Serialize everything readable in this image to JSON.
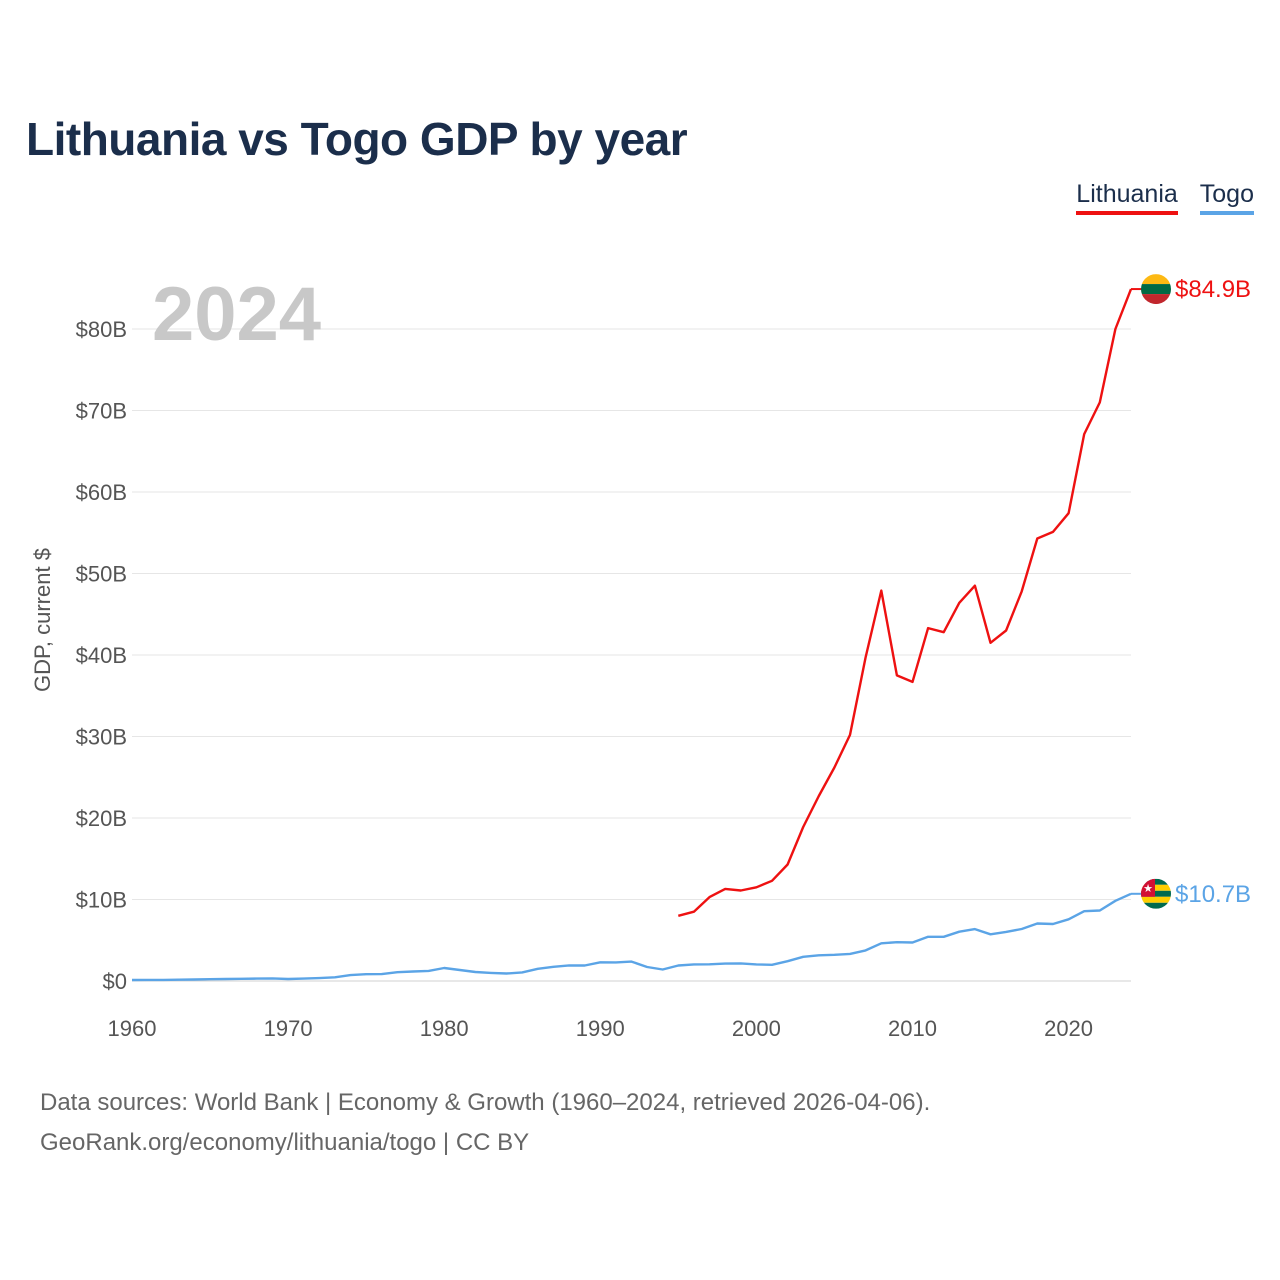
{
  "title": "Lithuania vs Togo GDP by year",
  "legend": {
    "lithuania": "Lithuania",
    "togo": "Togo"
  },
  "source_line1": "Data sources: World Bank | Economy & Growth (1960–2024, retrieved 2026-04-06).",
  "source_line2": "GeoRank.org/economy/lithuania/togo | CC BY",
  "chart_data": {
    "type": "line",
    "title": "Lithuania vs Togo GDP by year",
    "ylabel": "GDP, current $",
    "xlabel": "",
    "year_label": "2024",
    "xlim": [
      1960,
      2024
    ],
    "ylim": [
      0,
      80
    ],
    "y_unit": "billion USD",
    "x_ticks": [
      1960,
      1970,
      1980,
      1990,
      2000,
      2010,
      2020
    ],
    "y_ticks": [
      {
        "value": 0,
        "label": "$0"
      },
      {
        "value": 10,
        "label": "$10B"
      },
      {
        "value": 20,
        "label": "$20B"
      },
      {
        "value": 30,
        "label": "$30B"
      },
      {
        "value": 40,
        "label": "$40B"
      },
      {
        "value": 50,
        "label": "$50B"
      },
      {
        "value": 60,
        "label": "$60B"
      },
      {
        "value": 70,
        "label": "$70B"
      },
      {
        "value": 80,
        "label": "$80B"
      }
    ],
    "grid": true,
    "series": [
      {
        "name": "Lithuania",
        "color": "#ee1111",
        "end_label": "$84.9B",
        "flag": "lithuania-flag",
        "x": [
          1995,
          1996,
          1997,
          1998,
          1999,
          2000,
          2001,
          2002,
          2003,
          2004,
          2005,
          2006,
          2007,
          2008,
          2009,
          2010,
          2011,
          2012,
          2013,
          2014,
          2015,
          2016,
          2017,
          2018,
          2019,
          2020,
          2021,
          2022,
          2023,
          2024
        ],
        "values": [
          8.0,
          8.5,
          10.3,
          11.3,
          11.1,
          11.5,
          12.3,
          14.3,
          18.9,
          22.7,
          26.2,
          30.2,
          39.7,
          47.9,
          37.5,
          36.7,
          43.3,
          42.8,
          46.4,
          48.5,
          41.5,
          43.0,
          47.8,
          54.3,
          55.1,
          57.4,
          67.1,
          71.0,
          80.0,
          84.9
        ]
      },
      {
        "name": "Togo",
        "color": "#5ba4e6",
        "end_label": "$10.7B",
        "flag": "togo-flag",
        "x": [
          1960,
          1961,
          1962,
          1963,
          1964,
          1965,
          1966,
          1967,
          1968,
          1969,
          1970,
          1971,
          1972,
          1973,
          1974,
          1975,
          1976,
          1977,
          1978,
          1979,
          1980,
          1981,
          1982,
          1983,
          1984,
          1985,
          1986,
          1987,
          1988,
          1989,
          1990,
          1991,
          1992,
          1993,
          1994,
          1995,
          1996,
          1997,
          1998,
          1999,
          2000,
          2001,
          2002,
          2003,
          2004,
          2005,
          2006,
          2007,
          2008,
          2009,
          2010,
          2011,
          2012,
          2013,
          2014,
          2015,
          2016,
          2017,
          2018,
          2019,
          2020,
          2021,
          2022,
          2023,
          2024
        ],
        "values": [
          0.12,
          0.13,
          0.14,
          0.16,
          0.19,
          0.22,
          0.25,
          0.27,
          0.29,
          0.32,
          0.25,
          0.29,
          0.35,
          0.45,
          0.73,
          0.84,
          0.85,
          1.08,
          1.17,
          1.24,
          1.59,
          1.35,
          1.1,
          1.0,
          0.92,
          1.05,
          1.5,
          1.74,
          1.92,
          1.9,
          2.29,
          2.28,
          2.38,
          1.72,
          1.41,
          1.9,
          2.04,
          2.05,
          2.14,
          2.16,
          2.04,
          1.99,
          2.43,
          2.97,
          3.15,
          3.22,
          3.32,
          3.76,
          4.63,
          4.76,
          4.73,
          5.42,
          5.42,
          6.05,
          6.37,
          5.73,
          6.02,
          6.38,
          7.05,
          6.99,
          7.57,
          8.56,
          8.65,
          9.84,
          10.7
        ]
      }
    ]
  }
}
